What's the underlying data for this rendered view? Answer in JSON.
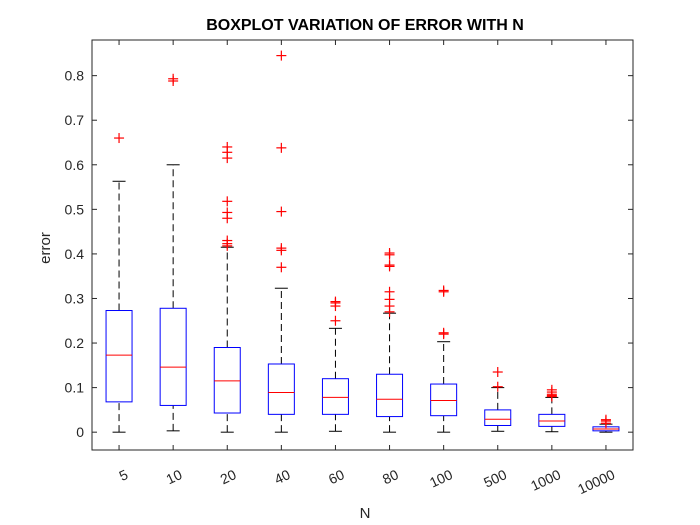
{
  "chart_data": {
    "type": "boxplot",
    "title": "BOXPLOT VARIATION OF ERROR WITH N",
    "xlabel": "N",
    "ylabel": "error",
    "ylim": [
      -0.04,
      0.88
    ],
    "yticks": [
      0,
      0.1,
      0.2,
      0.3,
      0.4,
      0.5,
      0.6,
      0.7,
      0.8
    ],
    "ytick_labels": [
      "0",
      "0.1",
      "0.2",
      "0.3",
      "0.4",
      "0.5",
      "0.6",
      "0.7",
      "0.8"
    ],
    "categories": [
      "5",
      "10",
      "20",
      "40",
      "60",
      "80",
      "100",
      "500",
      "1000",
      "10000"
    ],
    "boxes": [
      {
        "min": 0.0,
        "q1": 0.068,
        "median": 0.173,
        "q3": 0.273,
        "max": 0.563,
        "outliers": [
          0.66
        ]
      },
      {
        "min": 0.003,
        "q1": 0.06,
        "median": 0.146,
        "q3": 0.278,
        "max": 0.6,
        "outliers": [
          0.788,
          0.793
        ]
      },
      {
        "min": 0.0,
        "q1": 0.043,
        "median": 0.115,
        "q3": 0.19,
        "max": 0.415,
        "outliers": [
          0.418,
          0.423,
          0.43,
          0.48,
          0.493,
          0.518,
          0.615,
          0.628,
          0.64
        ]
      },
      {
        "min": 0.0,
        "q1": 0.04,
        "median": 0.089,
        "q3": 0.153,
        "max": 0.323,
        "outliers": [
          0.37,
          0.408,
          0.413,
          0.495,
          0.638,
          0.845
        ]
      },
      {
        "min": 0.002,
        "q1": 0.04,
        "median": 0.078,
        "q3": 0.12,
        "max": 0.233,
        "outliers": [
          0.25,
          0.283,
          0.29,
          0.293
        ]
      },
      {
        "min": 0.0,
        "q1": 0.035,
        "median": 0.074,
        "q3": 0.13,
        "max": 0.267,
        "outliers": [
          0.27,
          0.283,
          0.298,
          0.315,
          0.372,
          0.375,
          0.398,
          0.402
        ]
      },
      {
        "min": 0.0,
        "q1": 0.037,
        "median": 0.071,
        "q3": 0.108,
        "max": 0.203,
        "outliers": [
          0.22,
          0.223,
          0.315,
          0.318
        ]
      },
      {
        "min": 0.002,
        "q1": 0.015,
        "median": 0.029,
        "q3": 0.05,
        "max": 0.1,
        "outliers": [
          0.102,
          0.135
        ]
      },
      {
        "min": 0.001,
        "q1": 0.013,
        "median": 0.025,
        "q3": 0.04,
        "max": 0.078,
        "outliers": [
          0.08,
          0.082,
          0.085,
          0.09,
          0.095
        ]
      },
      {
        "min": 0.0,
        "q1": 0.003,
        "median": 0.007,
        "q3": 0.012,
        "max": 0.018,
        "outliers": [
          0.02,
          0.025,
          0.028
        ]
      }
    ],
    "colors": {
      "box": "#0000ff",
      "median": "#ff0000",
      "whisker": "#000000",
      "outlier": "#ff0000",
      "axis": "#262626"
    },
    "grid": false
  }
}
